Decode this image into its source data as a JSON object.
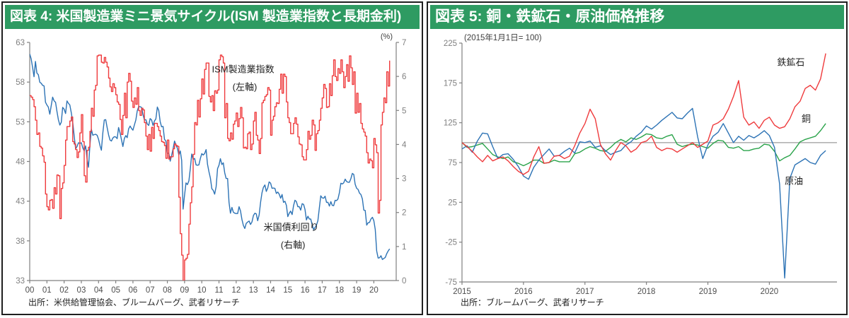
{
  "panels": [
    {
      "title": "図表 4: 米国製造業ミニ景気サイクル(ISM 製造業指数と長期金利)",
      "source": "出所：米供給管理協会、ブルームバーグ、武者リサーチ"
    },
    {
      "title": "図表 5: 銅・鉄鉱石・原油価格推移",
      "source": "出所：ブルームバーグ、武者リサーチ"
    }
  ],
  "colors": {
    "header_green": "#2e9b62",
    "ism_red": "#ef3b3d",
    "yield_blue": "#2d73b5",
    "iron_red": "#ef3b3d",
    "copper_green": "#2aa34a",
    "oil_blue": "#2d73b5",
    "refline_gray": "#a6a6a6",
    "axis_gray": "#808080"
  },
  "chart_data": [
    {
      "type": "line",
      "title": "図表 4: 米国製造業ミニ景気サイクル(ISM 製造業指数と長期金利)",
      "x": {
        "domain": [
          2000,
          2021.3
        ],
        "ticks": [
          2000,
          2001,
          2002,
          2003,
          2004,
          2005,
          2006,
          2007,
          2008,
          2009,
          2010,
          2011,
          2012,
          2013,
          2014,
          2015,
          2016,
          2017,
          2018,
          2019,
          2020
        ],
        "tick_labels": [
          "00",
          "01",
          "02",
          "03",
          "04",
          "05",
          "06",
          "07",
          "08",
          "09",
          "10",
          "11",
          "12",
          "13",
          "14",
          "15",
          "16",
          "17",
          "18",
          "19",
          "20"
        ]
      },
      "axes": {
        "left": {
          "domain": [
            33,
            63
          ],
          "ticks": [
            63,
            58,
            53,
            48,
            43,
            38,
            33
          ],
          "label": ""
        },
        "right": {
          "domain": [
            0,
            7
          ],
          "ticks": [
            7,
            6,
            5,
            4,
            3,
            2,
            1,
            0
          ],
          "label": "(%)"
        }
      },
      "series": [
        {
          "name": "米国債利回り",
          "axis": "right",
          "color": "#2d73b5",
          "step": false,
          "start": 2000,
          "interval_years": 0.0833333,
          "values": [
            6.66,
            6.52,
            6.26,
            5.99,
            6.44,
            6.1,
            6.05,
            5.83,
            5.8,
            5.74,
            5.72,
            5.24,
            5.16,
            5.1,
            4.89,
            5.14,
            5.39,
            5.28,
            5.24,
            4.97,
            4.73,
            4.57,
            4.65,
            5.09,
            5.04,
            4.91,
            5.28,
            5.21,
            5.16,
            4.93,
            4.65,
            4.26,
            3.87,
            3.94,
            4.05,
            4.03,
            4.05,
            3.9,
            3.81,
            3.96,
            3.57,
            3.33,
            3.98,
            4.45,
            4.27,
            4.29,
            4.3,
            4.27,
            4.15,
            3.97,
            3.83,
            4.35,
            4.72,
            4.73,
            4.5,
            4.28,
            4.13,
            4.1,
            4.19,
            4.23,
            4.22,
            4.17,
            4.5,
            4.34,
            4.14,
            3.94,
            4.18,
            4.26,
            4.2,
            4.46,
            4.54,
            4.47,
            4.42,
            4.57,
            4.72,
            4.99,
            5.11,
            5.11,
            5.09,
            4.88,
            4.72,
            4.73,
            4.6,
            4.56,
            4.76,
            4.72,
            4.56,
            4.69,
            4.75,
            5.1,
            5.0,
            4.67,
            4.52,
            4.53,
            4.15,
            4.1,
            3.74,
            3.74,
            3.51,
            3.68,
            3.88,
            4.1,
            3.98,
            3.89,
            3.69,
            3.81,
            3.53,
            2.1,
            2.52,
            2.87,
            2.82,
            2.93,
            3.29,
            3.72,
            3.56,
            3.59,
            3.4,
            3.39,
            3.4,
            3.59,
            3.73,
            3.69,
            3.73,
            3.85,
            3.42,
            3.2,
            3.01,
            2.7,
            2.65,
            2.54,
            2.76,
            3.29,
            3.39,
            3.58,
            3.41,
            3.46,
            3.17,
            3.0,
            3.0,
            2.3,
            1.98,
            2.15,
            2.01,
            1.98,
            1.97,
            1.97,
            2.17,
            2.05,
            1.8,
            1.62,
            1.53,
            1.68,
            1.72,
            1.75,
            1.65,
            1.72,
            1.91,
            1.98,
            1.96,
            1.76,
            1.93,
            2.3,
            2.58,
            2.74,
            2.81,
            2.62,
            2.72,
            2.9,
            2.86,
            2.71,
            2.72,
            2.71,
            2.56,
            2.6,
            2.54,
            2.42,
            2.53,
            2.3,
            2.33,
            2.21,
            1.88,
            1.98,
            2.04,
            1.94,
            2.2,
            2.36,
            2.32,
            2.17,
            2.17,
            2.07,
            2.26,
            2.24,
            2.09,
            1.78,
            1.89,
            1.81,
            1.81,
            1.64,
            1.5,
            1.56,
            1.63,
            1.76,
            2.14,
            2.49,
            2.43,
            2.42,
            2.48,
            2.3,
            2.3,
            2.19,
            2.32,
            2.21,
            2.2,
            2.36,
            2.35,
            2.4,
            2.58,
            2.86,
            2.84,
            2.87,
            2.98,
            2.91,
            2.89,
            2.89,
            3.0,
            3.15,
            3.12,
            2.83,
            2.71,
            2.68,
            2.57,
            2.53,
            2.4,
            2.07,
            2.06,
            1.63,
            1.7,
            1.71,
            1.81,
            1.86,
            1.76,
            1.5,
            0.87,
            0.66,
            0.67,
            0.73,
            0.62,
            0.65,
            0.68,
            0.79,
            0.87,
            0.93
          ]
        },
        {
          "name": "ISM製造業指数",
          "axis": "left",
          "color": "#ef3b3d",
          "step": true,
          "start": 2000,
          "interval_years": 0.0833333,
          "values": [
            56.3,
            56.1,
            55.8,
            54.9,
            53.2,
            51.4,
            51.6,
            49.9,
            49.7,
            48.7,
            47.9,
            43.9,
            42.3,
            41.9,
            43.1,
            43.2,
            42.1,
            44.7,
            43.9,
            46.3,
            46.2,
            40.8,
            44.6,
            45.3,
            47.5,
            50.7,
            52.4,
            52.4,
            53.1,
            53.6,
            50.5,
            50.2,
            49.5,
            48.5,
            49.2,
            51.6,
            53.9,
            50.5,
            46.2,
            45.4,
            49.4,
            49.8,
            51.8,
            54.7,
            53.7,
            57.0,
            57.6,
            61.3,
            61.4,
            61.4,
            60.5,
            60.4,
            61.1,
            60.5,
            59.9,
            58.5,
            57.4,
            56.8,
            57.8,
            57.3,
            56.4,
            55.5,
            55.2,
            53.3,
            51.4,
            53.8,
            56.6,
            53.5,
            58.0,
            59.1,
            58.1,
            55.6,
            54.8,
            56.0,
            55.2,
            57.3,
            54.4,
            53.8,
            54.7,
            54.5,
            52.9,
            51.2,
            49.5,
            51.4,
            49.3,
            52.3,
            50.9,
            52.8,
            52.8,
            52.4,
            51.9,
            51.2,
            50.5,
            50.4,
            50.0,
            48.4,
            50.7,
            48.3,
            48.6,
            48.6,
            49.6,
            50.2,
            50.0,
            49.9,
            43.5,
            38.9,
            36.2,
            32.9,
            35.6,
            35.8,
            36.3,
            40.1,
            42.8,
            44.8,
            48.9,
            52.9,
            52.6,
            55.7,
            53.6,
            55.9,
            58.4,
            56.5,
            59.6,
            60.4,
            60.4,
            56.2,
            55.5,
            56.3,
            54.4,
            56.9,
            56.6,
            57.0,
            60.8,
            61.4,
            61.2,
            60.4,
            53.5,
            55.3,
            50.9,
            50.6,
            51.6,
            50.8,
            52.7,
            53.1,
            54.1,
            52.4,
            53.4,
            54.8,
            53.5,
            49.7,
            49.8,
            49.6,
            51.5,
            51.7,
            49.5,
            50.2,
            53.1,
            54.2,
            51.3,
            50.7,
            49.0,
            50.9,
            55.4,
            55.7,
            56.2,
            56.4,
            57.3,
            57.0,
            51.3,
            53.2,
            53.7,
            54.9,
            55.4,
            55.3,
            57.1,
            59.0,
            56.6,
            59.0,
            58.7,
            55.5,
            53.5,
            52.9,
            51.5,
            51.5,
            52.8,
            53.5,
            52.7,
            51.1,
            50.2,
            50.1,
            48.6,
            48.2,
            48.2,
            49.5,
            51.8,
            50.8,
            51.3,
            53.2,
            52.6,
            49.4,
            51.5,
            51.9,
            53.2,
            54.7,
            56.0,
            57.7,
            57.2,
            54.8,
            54.9,
            57.8,
            56.3,
            58.8,
            60.8,
            58.7,
            58.2,
            59.7,
            59.1,
            60.8,
            59.3,
            57.3,
            58.7,
            60.2,
            58.1,
            61.3,
            59.8,
            57.7,
            59.3,
            54.1,
            56.6,
            54.2,
            55.3,
            52.8,
            52.1,
            51.7,
            51.2,
            49.1,
            47.8,
            48.3,
            48.1,
            47.2,
            50.9,
            50.1,
            49.1,
            41.5,
            43.1,
            52.6,
            54.2,
            56.0,
            55.4,
            59.3,
            57.5,
            60.7
          ]
        }
      ],
      "annotations": [
        {
          "text": "ISM製造業指数",
          "x": 2012.4,
          "y": 59.2,
          "axis": "left"
        },
        {
          "text": "(左軸)",
          "x": 2012.5,
          "y": 57.0,
          "axis": "left"
        },
        {
          "text": "米国債利回り",
          "x": 2015.2,
          "y": 39.3,
          "axis": "left"
        },
        {
          "text": "(右軸)",
          "x": 2015.3,
          "y": 37.1,
          "axis": "left"
        }
      ]
    },
    {
      "type": "line",
      "title": "図表 5: 銅・鉄鉱石・原油価格推移",
      "subtitle": "(2015年1月1日= 100)",
      "x": {
        "domain": [
          2015,
          2021.1
        ],
        "ticks": [
          2015,
          2016,
          2017,
          2018,
          2019,
          2020
        ],
        "tick_labels": [
          "2015",
          "2016",
          "2017",
          "2018",
          "2019",
          "2020"
        ]
      },
      "axes": {
        "left": {
          "domain": [
            -75,
            225
          ],
          "ticks": [
            225,
            175,
            125,
            75,
            25,
            -25,
            -75
          ],
          "label": ""
        }
      },
      "refline": {
        "axis": "left",
        "value": 100,
        "color": "#a6a6a6"
      },
      "series": [
        {
          "name": "銅",
          "axis": "left",
          "color": "#2aa34a",
          "step": false,
          "start": 2015,
          "interval_years": 0.0833333,
          "values": [
            100,
            94,
            95,
            97,
            99,
            92,
            85,
            82,
            80,
            82,
            76,
            74,
            71,
            74,
            78,
            78,
            74,
            75,
            78,
            76,
            76,
            76,
            86,
            88,
            92,
            95,
            93,
            90,
            89,
            94,
            100,
            104,
            101,
            106,
            104,
            107,
            111,
            110,
            106,
            105,
            108,
            110,
            98,
            95,
            97,
            98,
            97,
            95,
            93,
            99,
            103,
            102,
            94,
            93,
            95,
            90,
            90,
            92,
            93,
            98,
            97,
            89,
            77,
            81,
            84,
            92,
            101,
            104,
            106,
            108,
            115,
            124
          ]
        },
        {
          "name": "原油",
          "axis": "left",
          "color": "#2d73b5",
          "step": false,
          "start": 2015,
          "interval_years": 0.0833333,
          "values": [
            92,
            96,
            88,
            102,
            112,
            111,
            95,
            80,
            85,
            86,
            79,
            70,
            58,
            54,
            69,
            78,
            85,
            92,
            83,
            84,
            89,
            93,
            87,
            101,
            100,
            102,
            94,
            96,
            90,
            85,
            88,
            90,
            97,
            101,
            108,
            113,
            121,
            117,
            122,
            128,
            133,
            138,
            131,
            130,
            137,
            143,
            107,
            80,
            97,
            108,
            113,
            124,
            112,
            100,
            108,
            103,
            109,
            106,
            110,
            115,
            109,
            94,
            48,
            -70,
            55,
            72,
            76,
            80,
            75,
            73,
            84,
            90
          ]
        },
        {
          "name": "鉄鉱石",
          "axis": "left",
          "color": "#ef3b3d",
          "step": false,
          "start": 2015,
          "interval_years": 0.0833333,
          "values": [
            100,
            95,
            89,
            82,
            76,
            84,
            77,
            80,
            82,
            77,
            70,
            64,
            60,
            64,
            82,
            95,
            74,
            75,
            83,
            84,
            80,
            83,
            96,
            112,
            124,
            142,
            130,
            98,
            86,
            78,
            90,
            100,
            96,
            88,
            92,
            100,
            102,
            108,
            94,
            90,
            93,
            92,
            88,
            92,
            96,
            100,
            94,
            98,
            102,
            122,
            125,
            130,
            142,
            158,
            178,
            132,
            122,
            126,
            118,
            128,
            132,
            122,
            118,
            120,
            130,
            145,
            152,
            168,
            172,
            166,
            180,
            212
          ]
        }
      ],
      "annotations": [
        {
          "text": "鉄鉱石",
          "x": 2020.35,
          "y": 197,
          "axis": "left"
        },
        {
          "text": "銅",
          "x": 2020.6,
          "y": 126,
          "axis": "left"
        },
        {
          "text": "原油",
          "x": 2020.4,
          "y": 48,
          "axis": "left"
        }
      ]
    }
  ]
}
